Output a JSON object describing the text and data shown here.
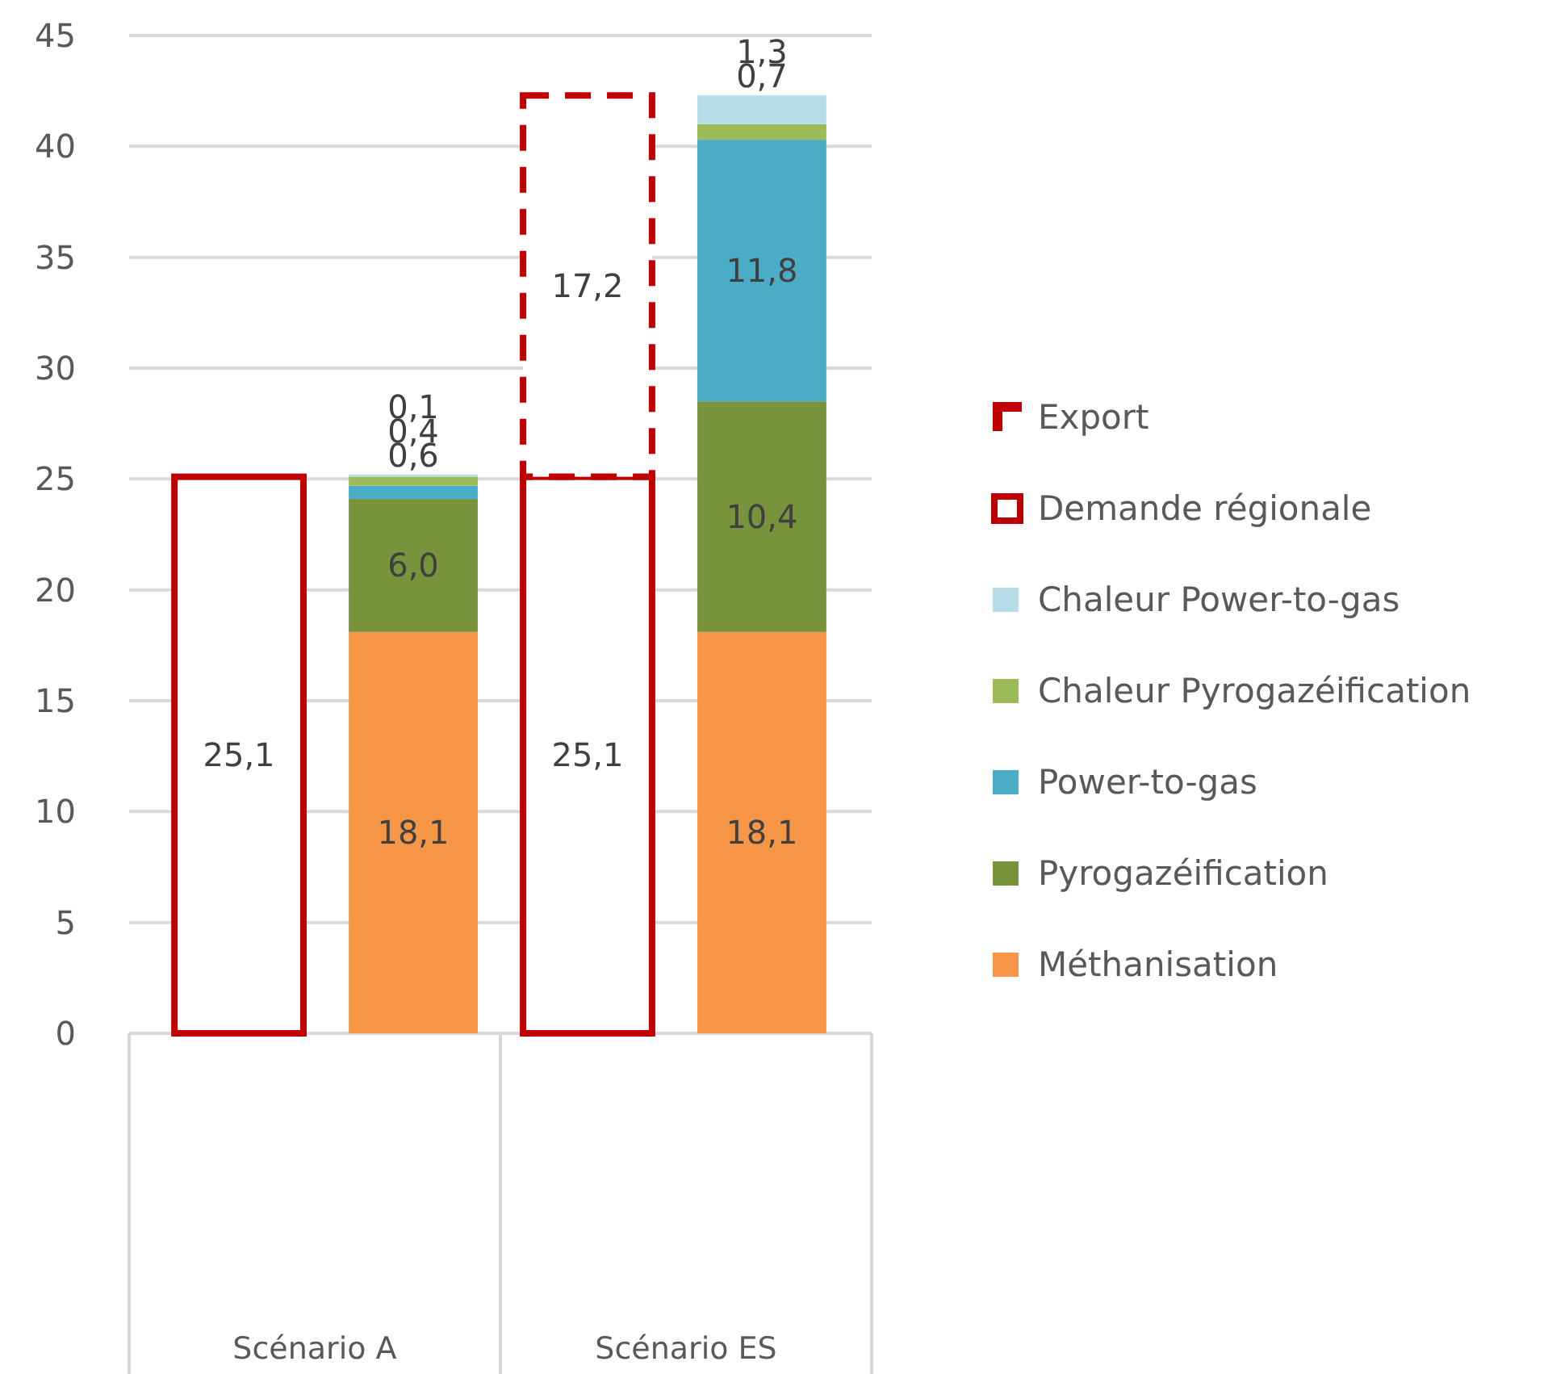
{
  "chart_data": {
    "type": "bar",
    "stacked": true,
    "categories": [
      null,
      null,
      null,
      null
    ],
    "series": [
      {
        "name": "Méthanisation",
        "color": "#f79646",
        "values": [
          null,
          18.1,
          null,
          18.1
        ],
        "value_labels": [
          null,
          "18,1",
          null,
          "18,1"
        ]
      },
      {
        "name": "Pyrogazéification",
        "color": "#77933c",
        "values": [
          null,
          6.0,
          null,
          10.4
        ],
        "value_labels": [
          null,
          "6,0",
          null,
          "10,4"
        ]
      },
      {
        "name": "Power-to-gas",
        "color": "#4bacc6",
        "values": [
          null,
          0.6,
          null,
          11.8
        ],
        "value_labels": [
          null,
          "0,6",
          null,
          "11,8"
        ]
      },
      {
        "name": "Chaleur Pyrogazéification",
        "color": "#9bbb59",
        "values": [
          null,
          0.4,
          null,
          0.7
        ],
        "value_labels": [
          null,
          "0,4",
          null,
          "0,7"
        ]
      },
      {
        "name": "Chaleur Power-to-gas",
        "color": "#b7dee8",
        "values": [
          null,
          0.1,
          null,
          1.3
        ],
        "value_labels": [
          null,
          "0,1",
          null,
          "1,3"
        ]
      },
      {
        "name": "Demande régionale",
        "color": "#c00000",
        "line_style": "solid",
        "values": [
          25.1,
          null,
          25.1,
          null
        ],
        "value_labels": [
          "25,1",
          null,
          "25,1",
          null
        ]
      },
      {
        "name": "Export",
        "color": "#c00000",
        "line_style": "dashed",
        "values": [
          null,
          null,
          17.2,
          null
        ],
        "value_labels": [
          null,
          null,
          "17,2",
          null
        ]
      }
    ],
    "annotations": [
      "Scénario A",
      "Scénario ES"
    ],
    "ylim": [
      0,
      45
    ],
    "yticks": [
      0,
      5,
      10,
      15,
      20,
      25,
      30,
      35,
      40,
      45
    ],
    "grid": "y",
    "legend": "right"
  }
}
